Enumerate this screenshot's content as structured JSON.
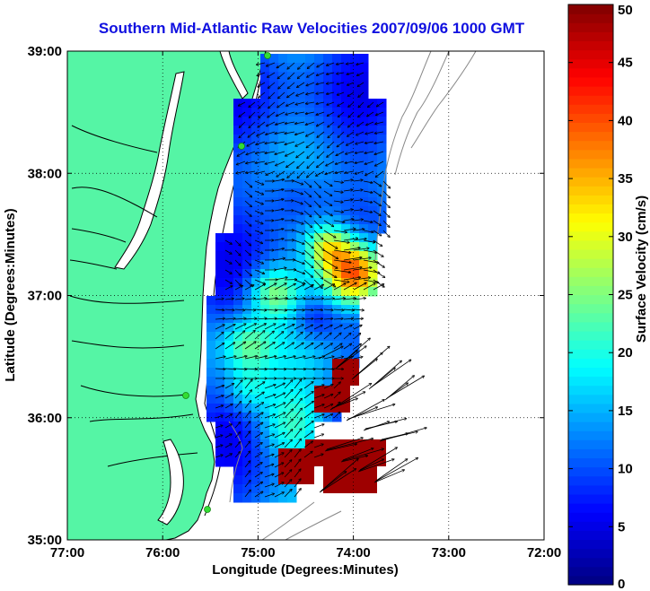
{
  "title": "Southern Mid-Atlantic Raw Velocities 2007/09/06 1000 GMT",
  "map": {
    "xlabel": "Longitude (Degrees:Minutes)",
    "ylabel": "Latitude (Degrees:Minutes)",
    "lon_range": [
      -77,
      -72
    ],
    "lat_range": [
      35,
      39
    ],
    "x_ticks": [
      {
        "value": -77,
        "label": "77:00"
      },
      {
        "value": -76,
        "label": "76:00"
      },
      {
        "value": -75,
        "label": "75:00"
      },
      {
        "value": -74,
        "label": "74:00"
      },
      {
        "value": -73,
        "label": "73:00"
      },
      {
        "value": -72,
        "label": "72:00"
      }
    ],
    "y_ticks": [
      {
        "value": 39,
        "label": "39:00"
      },
      {
        "value": 38,
        "label": "38:00"
      },
      {
        "value": 37,
        "label": "37:00"
      },
      {
        "value": 36,
        "label": "36:00"
      },
      {
        "value": 35,
        "label": "35:00"
      }
    ],
    "grid": "dotted",
    "land_color": "#55f5a5",
    "ocean_color": "#ffffff",
    "station_color": "#33dd33"
  },
  "colorbar": {
    "label": "Surface Velocity (cm/s)",
    "range": [
      0,
      50
    ],
    "ticks": [
      "0",
      "5",
      "10",
      "15",
      "20",
      "25",
      "30",
      "35",
      "40",
      "45",
      "50"
    ],
    "colormap": "jet"
  }
}
